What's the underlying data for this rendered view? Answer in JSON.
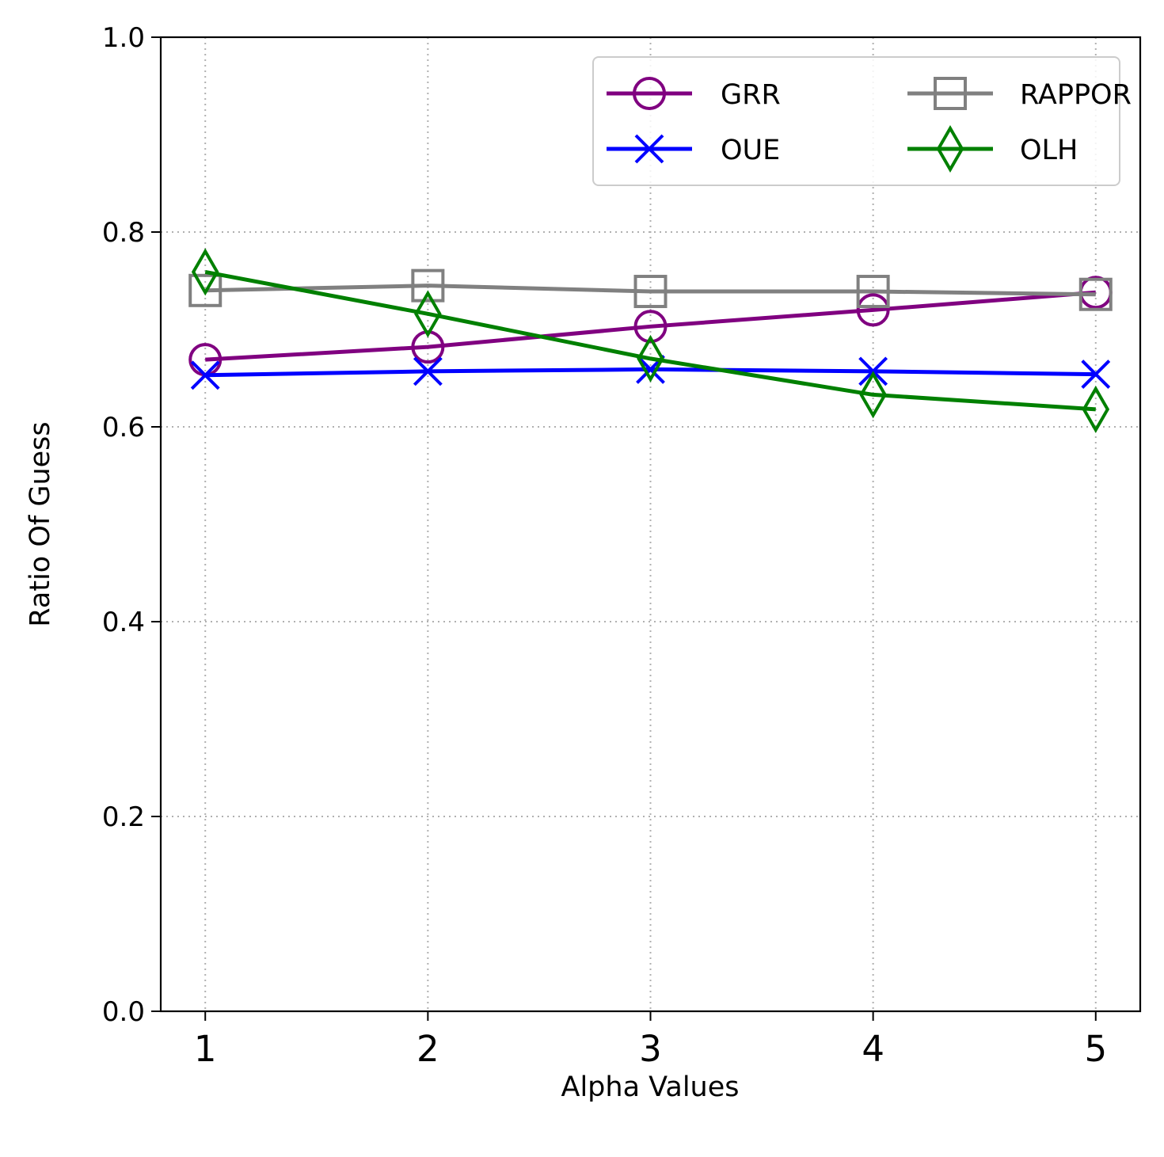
{
  "chart_data": {
    "type": "line",
    "title": "",
    "xlabel": "Alpha Values",
    "ylabel": "Ratio Of Guess",
    "x": [
      1,
      2,
      3,
      4,
      5
    ],
    "x_tick_labels": [
      "1",
      "2",
      "3",
      "4",
      "5"
    ],
    "y_tick_labels": [
      "0.0",
      "0.2",
      "0.4",
      "0.6",
      "0.8",
      "1.0"
    ],
    "xlim": [
      0.8,
      5.2
    ],
    "ylim": [
      0.0,
      1.0
    ],
    "grid": true,
    "legend_position": "top-right",
    "legend_columns": 2,
    "series": [
      {
        "name": "GRR",
        "color": "#800080",
        "marker": "circle",
        "values": [
          0.669,
          0.682,
          0.703,
          0.72,
          0.738
        ]
      },
      {
        "name": "RAPPOR",
        "color": "#808080",
        "marker": "square",
        "values": [
          0.74,
          0.745,
          0.739,
          0.739,
          0.736
        ]
      },
      {
        "name": "OUE",
        "color": "#0000ff",
        "marker": "x",
        "values": [
          0.653,
          0.657,
          0.659,
          0.657,
          0.654
        ]
      },
      {
        "name": "OLH",
        "color": "#008000",
        "marker": "diamond",
        "values": [
          0.759,
          0.716,
          0.67,
          0.633,
          0.618
        ]
      }
    ]
  }
}
